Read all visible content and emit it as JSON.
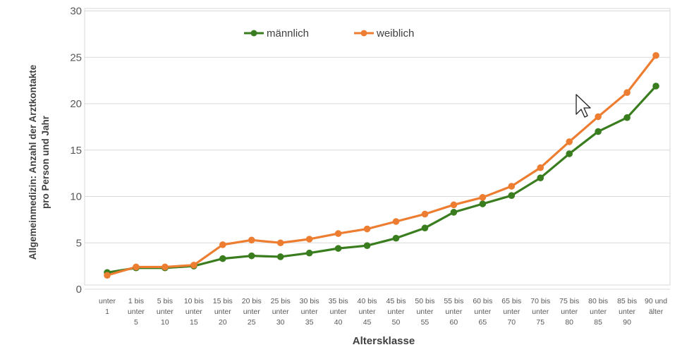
{
  "chart_data": {
    "type": "line",
    "xlabel": "Altersklasse",
    "ylabel": [
      "Allgemeinmedizin: Anzahl der Arztkontakte",
      "pro Person und Jahr"
    ],
    "ylim": [
      0,
      30
    ],
    "yticks": [
      0,
      5,
      10,
      15,
      20,
      25,
      30
    ],
    "grid": "horizontal",
    "legend_position": "top-center",
    "categories": [
      [
        "unter",
        "1"
      ],
      [
        "1 bis",
        "unter",
        "5"
      ],
      [
        "5 bis",
        "unter",
        "10"
      ],
      [
        "10 bis",
        "unter",
        "15"
      ],
      [
        "15 bis",
        "unter",
        "20"
      ],
      [
        "20 bis",
        "unter",
        "25"
      ],
      [
        "25 bis",
        "unter",
        "30"
      ],
      [
        "30 bis",
        "unter",
        "35"
      ],
      [
        "35 bis",
        "unter",
        "40"
      ],
      [
        "40 bis",
        "unter",
        "45"
      ],
      [
        "45 bis",
        "unter",
        "50"
      ],
      [
        "50 bis",
        "unter",
        "55"
      ],
      [
        "55 bis",
        "unter",
        "60"
      ],
      [
        "60 bis",
        "unter",
        "65"
      ],
      [
        "65 bis",
        "unter",
        "70"
      ],
      [
        "70 bis",
        "unter",
        "75"
      ],
      [
        "75 bis",
        "unter",
        "80"
      ],
      [
        "80 bis",
        "unter",
        "85"
      ],
      [
        "85 bis",
        "unter",
        "90"
      ],
      [
        "90 und",
        "älter"
      ]
    ],
    "series": [
      {
        "name": "männlich",
        "color": "#3a7d1f",
        "values": [
          1.8,
          2.3,
          2.3,
          2.5,
          3.3,
          3.6,
          3.5,
          3.9,
          4.4,
          4.7,
          5.5,
          6.6,
          8.3,
          9.2,
          10.1,
          12.0,
          14.6,
          17.0,
          18.5,
          21.9
        ]
      },
      {
        "name": "weiblich",
        "color": "#ed7d31",
        "values": [
          1.5,
          2.4,
          2.4,
          2.6,
          4.8,
          5.3,
          5.0,
          5.4,
          6.0,
          6.5,
          7.3,
          8.1,
          9.1,
          9.9,
          11.1,
          13.1,
          15.9,
          18.6,
          21.2,
          25.2
        ]
      }
    ]
  }
}
